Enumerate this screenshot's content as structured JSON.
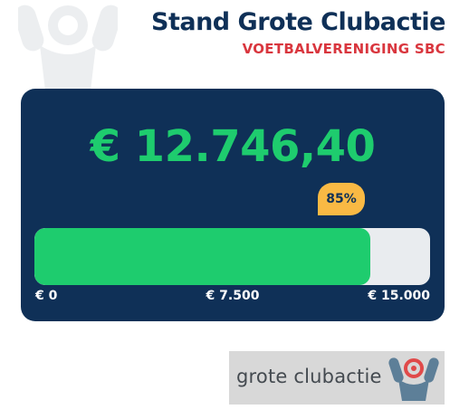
{
  "header": {
    "title": "Stand Grote Clubactie",
    "subtitle": "VOETBALVERENIGING SBC"
  },
  "progress": {
    "amount_label": "€ 12.746,40",
    "percent_label": "85%",
    "fraction": 0.85,
    "scale": {
      "min_label": "€ 0",
      "mid_label": "€ 7.500",
      "max_label": "€ 15.000"
    }
  },
  "logo": {
    "text": "grote clubactie"
  },
  "colors": {
    "navy": "#0f3057",
    "green": "#1ecc6e",
    "red": "#d9363e",
    "badge": "#f9b944"
  },
  "icons": {
    "background": "cheering-person-icon",
    "logo": "cheering-person-icon"
  }
}
